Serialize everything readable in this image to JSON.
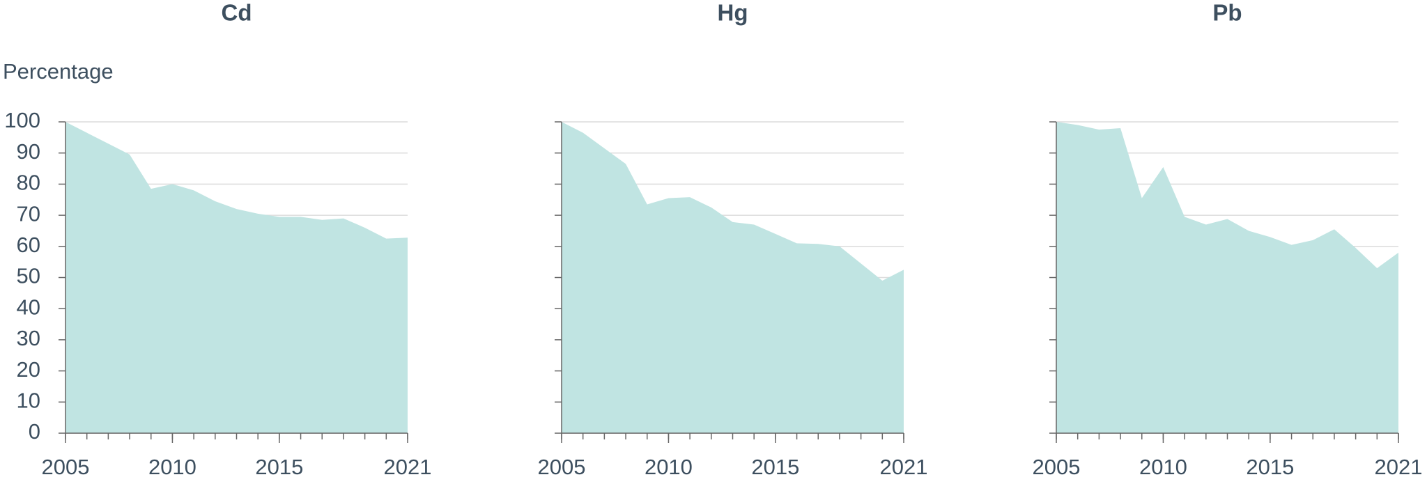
{
  "chart_data": [
    {
      "type": "area",
      "title": "Cd",
      "y_label": "Percentage",
      "ytick_labels": true,
      "color": "#c0e4e2",
      "x": [
        2005,
        2006,
        2007,
        2008,
        2009,
        2010,
        2011,
        2012,
        2013,
        2014,
        2015,
        2016,
        2017,
        2018,
        2019,
        2020,
        2021
      ],
      "values": [
        100,
        96.5,
        93,
        89.5,
        78.5,
        80,
        78,
        74.5,
        72,
        70.5,
        69.5,
        69.5,
        68.5,
        69,
        66,
        62.5,
        62.8
      ],
      "xlim": [
        2005,
        2021
      ],
      "xticks": [
        2005,
        2010,
        2015,
        2021
      ],
      "ylim": [
        0,
        100
      ],
      "yticks": [
        0,
        10,
        20,
        30,
        40,
        50,
        60,
        70,
        80,
        90,
        100
      ],
      "grid": true
    },
    {
      "type": "area",
      "title": "Hg",
      "ytick_labels": false,
      "color": "#c0e4e2",
      "x": [
        2005,
        2006,
        2007,
        2008,
        2009,
        2010,
        2011,
        2012,
        2013,
        2014,
        2015,
        2016,
        2017,
        2018,
        2019,
        2020,
        2021
      ],
      "values": [
        100,
        96.5,
        91.5,
        86.5,
        73.5,
        75.5,
        75.8,
        72.5,
        67.8,
        67,
        64,
        61,
        60.8,
        60,
        54.5,
        49,
        52.5
      ],
      "xlim": [
        2005,
        2021
      ],
      "xticks": [
        2005,
        2010,
        2015,
        2021
      ],
      "ylim": [
        0,
        100
      ],
      "yticks": [
        0,
        10,
        20,
        30,
        40,
        50,
        60,
        70,
        80,
        90,
        100
      ],
      "grid": true
    },
    {
      "type": "area",
      "title": "Pb",
      "ytick_labels": false,
      "color": "#c0e4e2",
      "x": [
        2005,
        2006,
        2007,
        2008,
        2009,
        2010,
        2011,
        2012,
        2013,
        2014,
        2015,
        2016,
        2017,
        2018,
        2019,
        2020,
        2021
      ],
      "values": [
        100,
        99,
        97.5,
        98,
        75.5,
        85.5,
        69.5,
        67,
        68.8,
        65,
        63,
        60.5,
        62,
        65.5,
        59.5,
        53,
        58
      ],
      "xlim": [
        2005,
        2021
      ],
      "xticks": [
        2005,
        2010,
        2015,
        2021
      ],
      "ylim": [
        0,
        100
      ],
      "yticks": [
        0,
        10,
        20,
        30,
        40,
        50,
        60,
        70,
        80,
        90,
        100
      ],
      "grid": true
    }
  ]
}
